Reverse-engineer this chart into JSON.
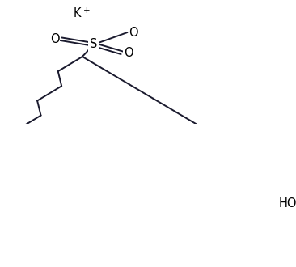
{
  "background_color": "#ffffff",
  "line_color": "#1a1a2e",
  "line_width": 1.4,
  "text_color": "#000000",
  "figsize": [
    3.66,
    3.3
  ],
  "dpi": 100,
  "K_text": "K",
  "K_plus": "+",
  "S_text": "S",
  "O_minus_text": "O",
  "O_minus_sup": "⁻",
  "O_left_text": "O",
  "O_right_text": "O",
  "HO_text": "HO",
  "fontsize": 10.5
}
